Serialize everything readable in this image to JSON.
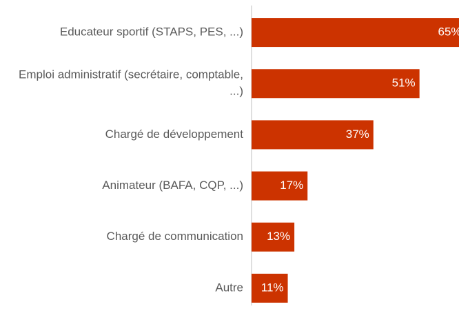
{
  "chart_data": {
    "type": "barh",
    "categories": [
      "Educateur sportif (STAPS, PES, ...)",
      "Emploi administratif (secrétaire, comptable, ...)",
      "Chargé de développement",
      "Animateur (BAFA, CQP, ...)",
      "Chargé de communication",
      "Autre"
    ],
    "values": [
      65,
      51,
      37,
      17,
      13,
      11
    ],
    "value_labels": [
      "65%",
      "51%",
      "37%",
      "17%",
      "13%",
      "11%"
    ],
    "color": "#cc3300",
    "xlim": [
      0,
      63
    ]
  }
}
